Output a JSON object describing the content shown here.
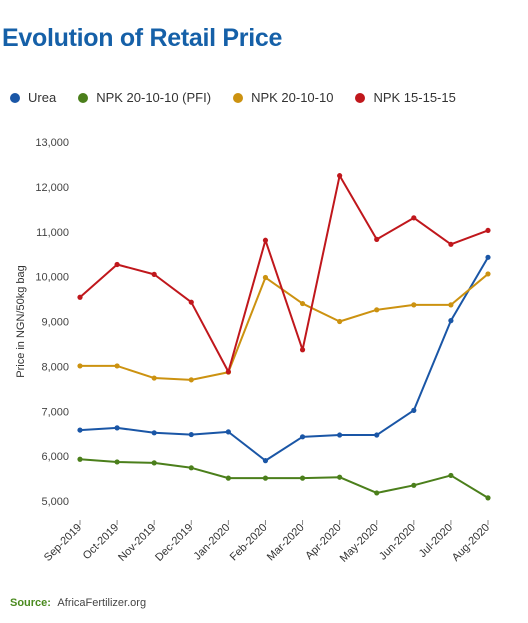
{
  "title": "Evolution of Retail Price",
  "source": {
    "label": "Source:",
    "text": "AfricaFertilizer.org"
  },
  "chart_data": {
    "type": "line",
    "title": "Evolution of Retail Price",
    "xlabel": "",
    "ylabel": "Price in NGN/50kg bag",
    "categories": [
      "Sep-2019",
      "Oct-2019",
      "Nov-2019",
      "Dec-2019",
      "Jan-2020",
      "Feb-2020",
      "Mar-2020",
      "Apr-2020",
      "May-2020",
      "Jun-2020",
      "Jul-2020",
      "Aug-2020"
    ],
    "ylim": [
      5000,
      13000
    ],
    "yticks": [
      5000,
      6000,
      7000,
      8000,
      9000,
      10000,
      11000,
      12000,
      13000
    ],
    "ytick_labels": [
      "5,000",
      "6,000",
      "7,000",
      "8,000",
      "9,000",
      "10,000",
      "11,000",
      "12,000",
      "13,000"
    ],
    "grid": false,
    "legend_position": "top-left",
    "series": [
      {
        "name": "Urea",
        "color": "#1a56a6",
        "values": [
          6580,
          6630,
          6520,
          6480,
          6540,
          5900,
          6430,
          6470,
          6470,
          7020,
          9020,
          10430
        ]
      },
      {
        "name": "NPK 20-10-10 (PFI)",
        "color": "#4b7f1b",
        "values": [
          5930,
          5870,
          5850,
          5740,
          5510,
          5510,
          5510,
          5530,
          5180,
          5350,
          5570,
          5070
        ]
      },
      {
        "name": "NPK 20-10-10",
        "color": "#cc9210",
        "values": [
          8010,
          8010,
          7740,
          7700,
          7870,
          9980,
          9400,
          9000,
          9260,
          9370,
          9370,
          10060
        ]
      },
      {
        "name": "NPK 15-15-15",
        "color": "#c0171c",
        "values": [
          9540,
          10270,
          10050,
          9430,
          7880,
          10810,
          8370,
          12250,
          10830,
          11310,
          10720,
          11030
        ]
      }
    ]
  }
}
